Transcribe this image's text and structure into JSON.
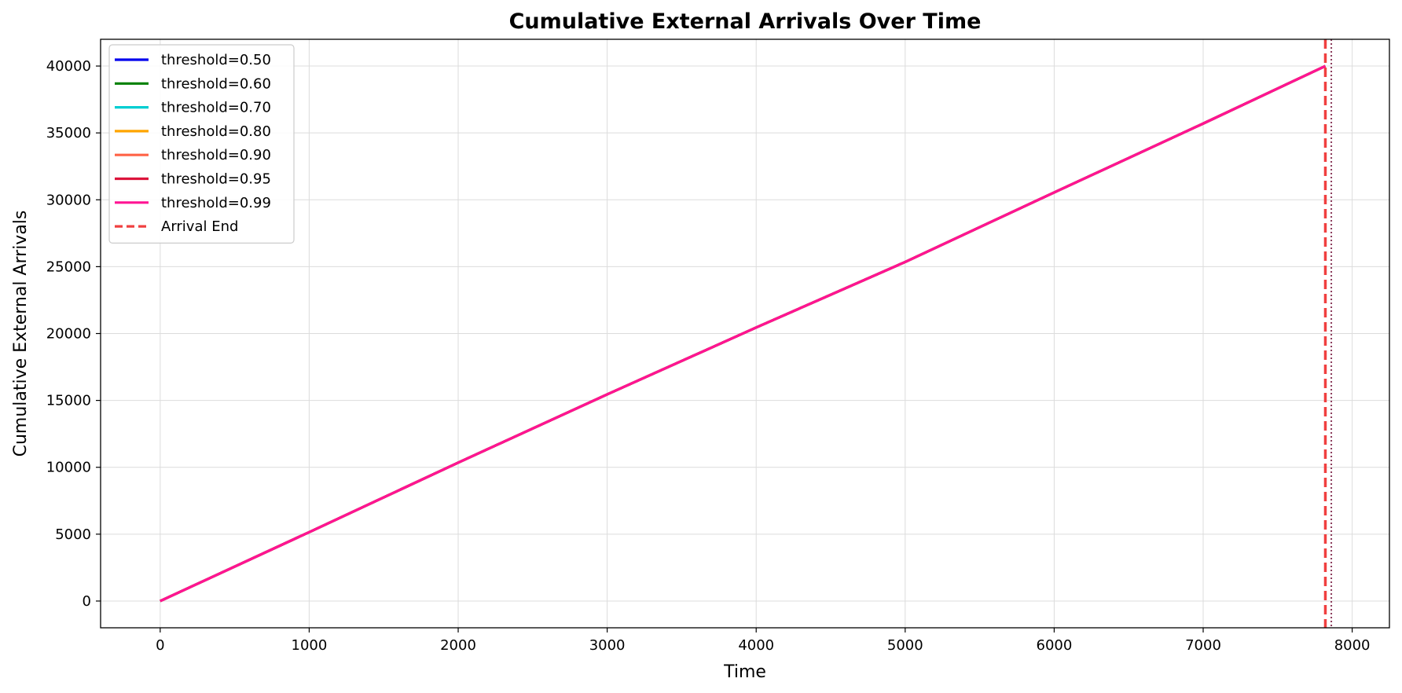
{
  "chart_data": {
    "type": "line",
    "title": "Cumulative External Arrivals Over Time",
    "xlabel": "Time",
    "ylabel": "Cumulative External Arrivals",
    "xlim": [
      -400,
      8250
    ],
    "ylim": [
      -2000,
      42000
    ],
    "xticks": [
      0,
      1000,
      2000,
      3000,
      4000,
      5000,
      6000,
      7000,
      8000
    ],
    "yticks": [
      0,
      5000,
      10000,
      15000,
      20000,
      25000,
      30000,
      35000,
      40000
    ],
    "grid": true,
    "legend_position": "upper-left",
    "series": [
      {
        "name": "threshold=0.50",
        "color": "#0000ee",
        "x": [
          0,
          1000,
          2000,
          3000,
          4000,
          5000,
          6000,
          7000,
          7820
        ],
        "y": [
          0,
          5150,
          10350,
          15450,
          20450,
          25350,
          30550,
          35700,
          40000
        ]
      },
      {
        "name": "threshold=0.60",
        "color": "#008000",
        "x": [
          0,
          1000,
          2000,
          3000,
          4000,
          5000,
          6000,
          7000,
          7820
        ],
        "y": [
          0,
          5150,
          10350,
          15450,
          20450,
          25350,
          30550,
          35700,
          40000
        ]
      },
      {
        "name": "threshold=0.70",
        "color": "#00ced1",
        "x": [
          0,
          1000,
          2000,
          3000,
          4000,
          5000,
          6000,
          7000,
          7820
        ],
        "y": [
          0,
          5150,
          10350,
          15450,
          20450,
          25350,
          30550,
          35700,
          40000
        ]
      },
      {
        "name": "threshold=0.80",
        "color": "#ffa500",
        "x": [
          0,
          1000,
          2000,
          3000,
          4000,
          5000,
          6000,
          7000,
          7820
        ],
        "y": [
          0,
          5150,
          10350,
          15450,
          20450,
          25350,
          30550,
          35700,
          40000
        ]
      },
      {
        "name": "threshold=0.90",
        "color": "#ff6347",
        "x": [
          0,
          1000,
          2000,
          3000,
          4000,
          5000,
          6000,
          7000,
          7820
        ],
        "y": [
          0,
          5150,
          10350,
          15450,
          20450,
          25350,
          30550,
          35700,
          40000
        ]
      },
      {
        "name": "threshold=0.95",
        "color": "#dc143c",
        "x": [
          0,
          1000,
          2000,
          3000,
          4000,
          5000,
          6000,
          7000,
          7820
        ],
        "y": [
          0,
          5150,
          10350,
          15450,
          20450,
          25350,
          30550,
          35700,
          40000
        ]
      },
      {
        "name": "threshold=0.99",
        "color": "#ff1493",
        "x": [
          0,
          1000,
          2000,
          3000,
          4000,
          5000,
          6000,
          7000,
          7820
        ],
        "y": [
          0,
          5150,
          10350,
          15450,
          20450,
          25350,
          30550,
          35700,
          40000
        ]
      }
    ],
    "reference_lines": [
      {
        "name": "Arrival End",
        "x": 7820,
        "color": "#f04040",
        "style": "dashed",
        "in_legend": true
      },
      {
        "name": "",
        "x": 7860,
        "color": "#8a3a5a",
        "style": "dotted",
        "in_legend": false
      }
    ]
  }
}
